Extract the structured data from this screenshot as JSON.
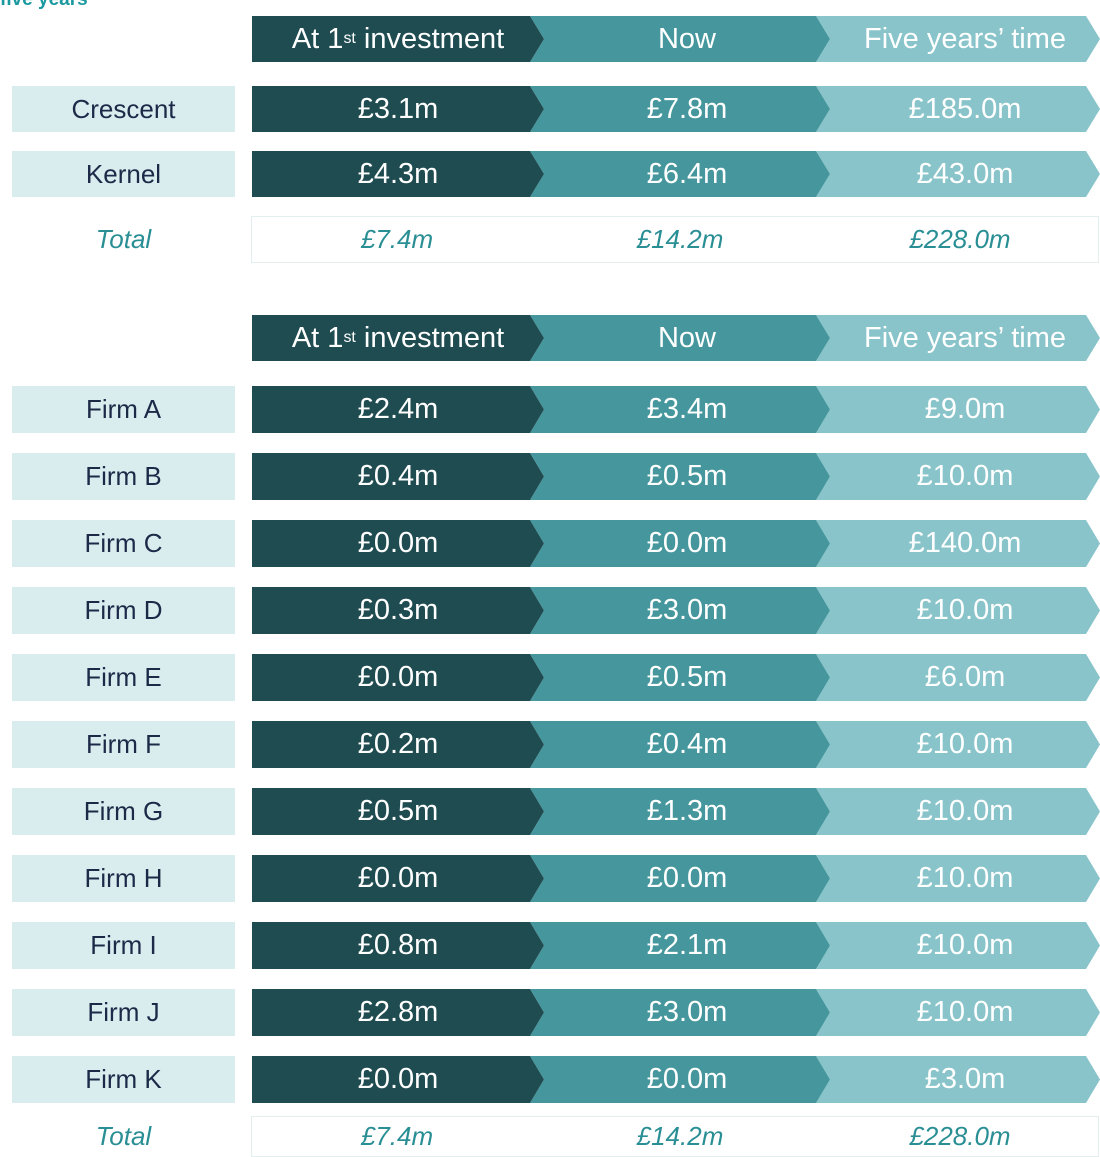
{
  "caption": "five years",
  "tables": [
    {
      "header": [
        {
          "text": "At 1",
          "sup": "st",
          "rest": " investment"
        },
        {
          "text": "Now"
        },
        {
          "text": "Five years’ time"
        }
      ],
      "rows": [
        {
          "label": "Crescent",
          "cells": [
            "£3.1m",
            "£7.8m",
            "£185.0m"
          ]
        },
        {
          "label": "Kernel",
          "cells": [
            "£4.3m",
            "£6.4m",
            "£43.0m"
          ]
        }
      ],
      "total": {
        "label": "Total",
        "cells": [
          "£7.4m",
          "£14.2m",
          "£228.0m"
        ]
      }
    },
    {
      "header": [
        {
          "text": "At 1",
          "sup": "st",
          "rest": " investment"
        },
        {
          "text": "Now"
        },
        {
          "text": "Five years’ time"
        }
      ],
      "rows": [
        {
          "label": "Firm A",
          "cells": [
            "£2.4m",
            "£3.4m",
            "£9.0m"
          ]
        },
        {
          "label": "Firm B",
          "cells": [
            "£0.4m",
            "£0.5m",
            "£10.0m"
          ]
        },
        {
          "label": "Firm C",
          "cells": [
            "£0.0m",
            "£0.0m",
            "£140.0m"
          ]
        },
        {
          "label": "Firm D",
          "cells": [
            "£0.3m",
            "£3.0m",
            "£10.0m"
          ]
        },
        {
          "label": "Firm E",
          "cells": [
            "£0.0m",
            "£0.5m",
            "£6.0m"
          ]
        },
        {
          "label": "Firm F",
          "cells": [
            "£0.2m",
            "£0.4m",
            "£10.0m"
          ]
        },
        {
          "label": "Firm G",
          "cells": [
            "£0.5m",
            "£1.3m",
            "£10.0m"
          ]
        },
        {
          "label": "Firm H",
          "cells": [
            "£0.0m",
            "£0.0m",
            "£10.0m"
          ]
        },
        {
          "label": "Firm I",
          "cells": [
            "£0.8m",
            "£2.1m",
            "£10.0m"
          ]
        },
        {
          "label": "Firm J",
          "cells": [
            "£2.8m",
            "£3.0m",
            "£10.0m"
          ]
        },
        {
          "label": "Firm K",
          "cells": [
            "£0.0m",
            "£0.0m",
            "£3.0m"
          ]
        }
      ],
      "total": {
        "label": "Total",
        "cells": [
          "£7.4m",
          "£14.2m",
          "£228.0m"
        ]
      }
    }
  ]
}
